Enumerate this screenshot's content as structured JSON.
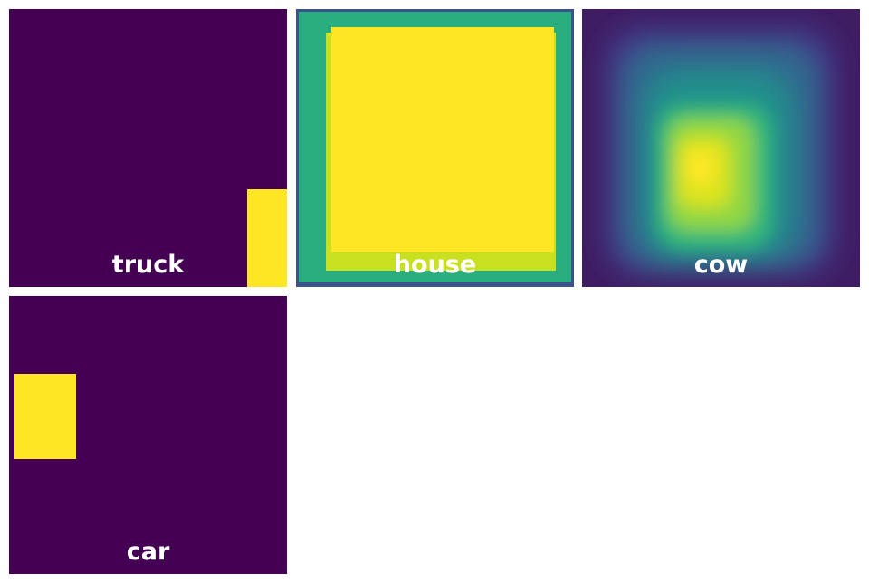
{
  "tiles": [
    {
      "label": "truck",
      "style": "box-mask"
    },
    {
      "label": "house",
      "style": "box-mask"
    },
    {
      "label": "cow",
      "style": "heatmap"
    },
    {
      "label": "car",
      "style": "box-mask"
    }
  ],
  "colors": {
    "background": "#440154",
    "mask": "#fde725",
    "teal": "#29af7f",
    "yellow_green": "#c8e020",
    "frame_blue": "#3b528b"
  }
}
